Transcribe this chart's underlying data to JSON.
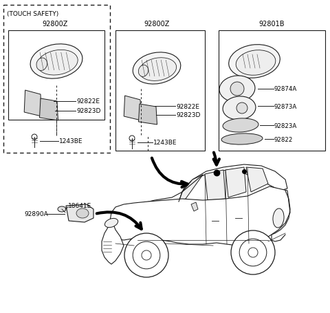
{
  "bg_color": "#ffffff",
  "line_color": "#1a1a1a",
  "text_color": "#000000",
  "fig_width": 4.8,
  "fig_height": 4.56,
  "dpi": 100,
  "labels": {
    "touch_safety": "(TOUCH SAFETY)",
    "part1_top": "92800Z",
    "part2_top": "92800Z",
    "part3_top": "92801B",
    "lbl_92822E_1": "92822E",
    "lbl_92823D_1": "92823D",
    "lbl_1243BE_1": "1243BE",
    "lbl_92822E_2": "92822E",
    "lbl_92823D_2": "92823D",
    "lbl_1243BE_2": "1243BE",
    "lbl_92874A": "92874A",
    "lbl_92873A": "92873A",
    "lbl_92823A": "92823A",
    "lbl_92822": "92822",
    "lbl_92890A": "92890A",
    "lbl_18641E": "18641E"
  }
}
